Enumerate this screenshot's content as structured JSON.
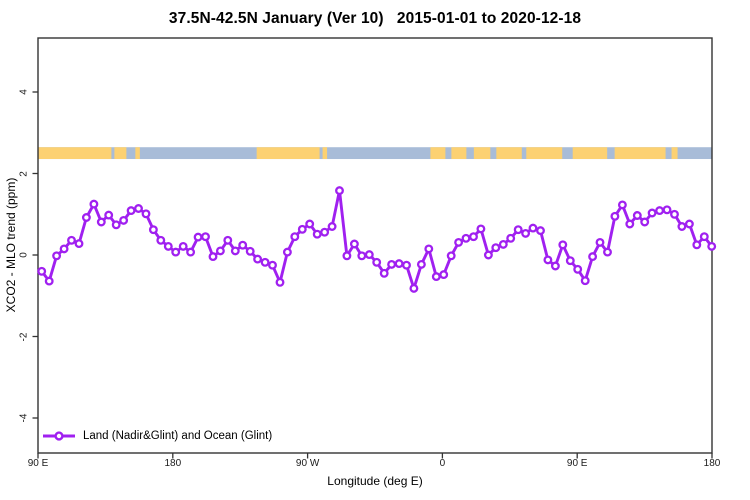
{
  "title": "37.5N-42.5N January (Ver 10)   2015-01-01 to 2020-12-18",
  "x_axis": {
    "label": "Longitude (deg E)",
    "ticks": [
      "90 E",
      "180",
      "90 W",
      "0",
      "90 E",
      "180"
    ]
  },
  "y_axis": {
    "label": "XCO2 - MLO trend (ppm)",
    "ticks": [
      "4",
      "2",
      "0",
      "-2",
      "-4"
    ]
  },
  "legend": {
    "label": "Land (Nadir&Glint) and Ocean (Glint)"
  },
  "colors": {
    "series": "#a020f0",
    "marker_fill": "#ffffff",
    "land": "#fcd172",
    "ocean": "#a8bcd8",
    "axis": "#333333"
  },
  "chart_data": {
    "type": "line",
    "title": "37.5N-42.5N January (Ver 10)   2015-01-01 to 2020-12-18",
    "xlabel": "Longitude (deg E)",
    "ylabel": "XCO2 - MLO trend (ppm)",
    "x_axis_span_deg": [
      90,
      540
    ],
    "x_tick_positions_deg": [
      90,
      180,
      270,
      360,
      450,
      540
    ],
    "x_tick_labels": [
      "90 E",
      "180",
      "90 W",
      "0",
      "90 E",
      "180"
    ],
    "ylim": [
      -4.9,
      5.3
    ],
    "y_ticks": [
      4,
      2,
      0,
      -2,
      -4
    ],
    "grid": false,
    "legend_position": "bottom-left",
    "series": [
      {
        "name": "Land (Nadir&Glint) and Ocean (Glint)",
        "marker": "open-circle",
        "color": "#a020f0",
        "x_start_deg": 92.5,
        "x_step_deg": 4.97,
        "values": [
          -0.4,
          -0.64,
          -0.02,
          0.15,
          0.36,
          0.28,
          0.92,
          1.25,
          0.81,
          0.98,
          0.74,
          0.85,
          1.09,
          1.14,
          1.01,
          0.62,
          0.36,
          0.21,
          0.07,
          0.21,
          0.07,
          0.44,
          0.45,
          -0.04,
          0.1,
          0.36,
          0.1,
          0.24,
          0.09,
          -0.1,
          -0.18,
          -0.25,
          -0.67,
          0.07,
          0.45,
          0.63,
          0.76,
          0.51,
          0.56,
          0.7,
          1.58,
          -0.02,
          0.27,
          -0.02,
          0.01,
          -0.18,
          -0.45,
          -0.23,
          -0.21,
          -0.25,
          -0.82,
          -0.23,
          0.15,
          -0.53,
          -0.48,
          -0.02,
          0.31,
          0.41,
          0.45,
          0.64,
          0.0,
          0.18,
          0.26,
          0.41,
          0.62,
          0.53,
          0.66,
          0.6,
          -0.12,
          -0.27,
          0.25,
          -0.14,
          -0.35,
          -0.63,
          -0.04,
          0.31,
          0.07,
          0.95,
          1.23,
          0.76,
          0.97,
          0.81,
          1.03,
          1.09,
          1.11,
          1.0,
          0.7,
          0.76,
          0.25,
          0.45,
          0.21
        ]
      }
    ],
    "land_ocean_band": {
      "description": "land(orange)/ocean(blue) strip at latitude band",
      "y_value_center": 2.5,
      "height_value": 0.29,
      "land_color": "#fcd172",
      "ocean_color": "#a8bcd8",
      "land_segments_deg": [
        [
          90,
          139
        ],
        [
          141,
          149
        ],
        [
          155,
          158
        ],
        [
          236,
          278
        ],
        [
          280,
          283
        ],
        [
          352,
          362
        ],
        [
          366,
          376
        ],
        [
          381,
          392
        ],
        [
          396,
          413
        ],
        [
          416,
          440
        ],
        [
          447,
          470
        ],
        [
          475,
          509
        ],
        [
          513,
          517
        ]
      ]
    }
  }
}
